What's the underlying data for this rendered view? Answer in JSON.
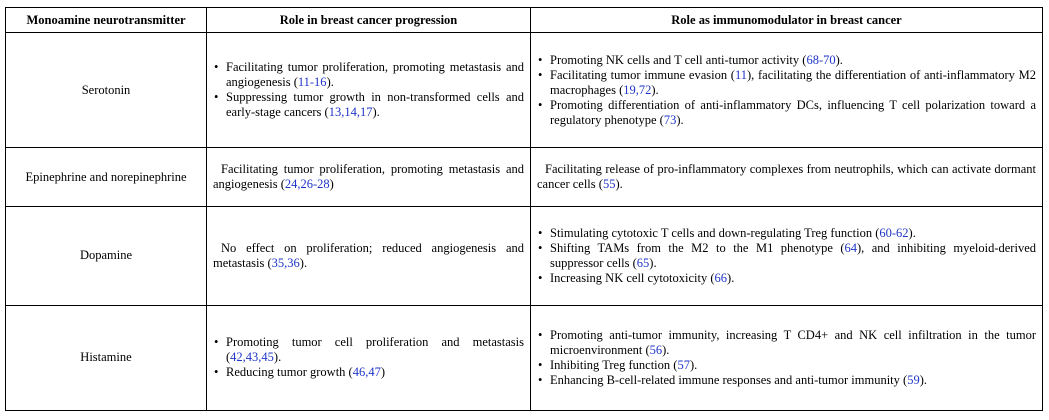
{
  "headers": {
    "col1": "Monoamine neurotransmitter",
    "col2": "Role in breast cancer progression",
    "col3": "Role as immunomodulator in breast cancer"
  },
  "rows": {
    "serotonin": {
      "name": "Serotonin",
      "progression": [
        {
          "text": "Facilitating tumor proliferation, promoting metastasis and angiogenesis (",
          "ref": "11-16",
          "tail": ")."
        },
        {
          "text": "Suppressing tumor growth in non-transformed cells and early-stage cancers (",
          "ref": "13,14,17",
          "tail": ")."
        }
      ],
      "immuno": [
        {
          "text": "Promoting NK cells and T cell anti-tumor activity (",
          "ref": "68-70",
          "tail": ")."
        },
        {
          "text": "Facilitating tumor immune evasion (",
          "ref": "11",
          "mid": "), facilitating the differentiation of anti-inflammatory M2 macrophages (",
          "ref2": "19,72",
          "tail": ")."
        },
        {
          "text": "Promoting differentiation of anti-inflammatory DCs, influencing T cell polarization toward a regulatory phenotype (",
          "ref": "73",
          "tail": ")."
        }
      ]
    },
    "epinephrine": {
      "name": "Epinephrine and norepinephrine",
      "progression": {
        "text": "Facilitating tumor proliferation, promoting metastasis and angiogenesis (",
        "ref": "24,26-28",
        "tail": ")"
      },
      "immuno": {
        "text": "Facilitating release of pro-inflammatory complexes from neutrophils, which can activate dormant cancer cells (",
        "ref": "55",
        "tail": ")."
      }
    },
    "dopamine": {
      "name": "Dopamine",
      "progression": {
        "text": "No effect on proliferation; reduced angiogenesis and metastasis (",
        "ref": "35,36",
        "tail": ")."
      },
      "immuno": [
        {
          "text": "Stimulating cytotoxic T cells and down-regulating Treg function (",
          "ref": "60-62",
          "tail": ")."
        },
        {
          "text": "Shifting TAMs from the M2 to the M1 phenotype (",
          "ref": "64",
          "mid": "), and inhibiting myeloid-derived suppressor cells (",
          "ref2": "65",
          "tail": ")."
        },
        {
          "text": "Increasing NK cell cytotoxicity (",
          "ref": "66",
          "tail": ")."
        }
      ]
    },
    "histamine": {
      "name": "Histamine",
      "progression": [
        {
          "text": "Promoting tumor cell proliferation and metastasis (",
          "ref": "42,43,45",
          "tail": ")."
        },
        {
          "text": "Reducing tumor growth (",
          "ref": "46,47",
          "tail": ")"
        }
      ],
      "immuno": [
        {
          "text": "Promoting anti-tumor immunity, increasing T CD4+ and NK cell infiltration in the tumor microenvironment (",
          "ref": "56",
          "tail": ")."
        },
        {
          "text": "Inhibiting Treg function (",
          "ref": "57",
          "tail": ")."
        },
        {
          "text": "Enhancing B-cell-related immune responses and anti-tumor immunity (",
          "ref": "59",
          "tail": ")."
        }
      ]
    }
  }
}
